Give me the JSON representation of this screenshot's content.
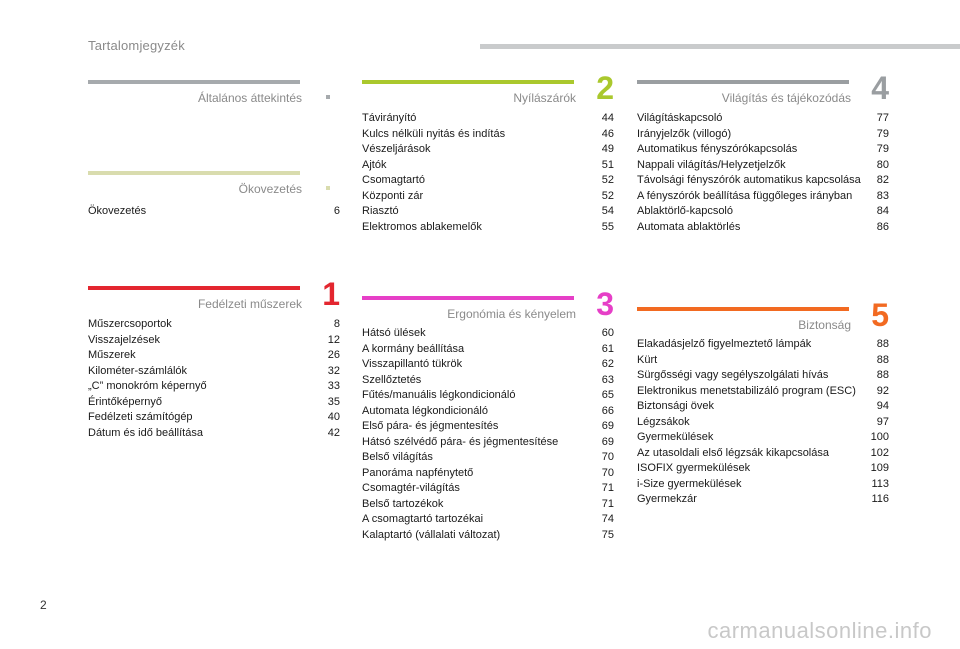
{
  "header": {
    "title": "Tartalomjegyzék"
  },
  "page_number": "2",
  "watermark": "carmanualsonline.info",
  "sections": {
    "general": {
      "title": "Általános áttekintés",
      "number": "",
      "color": "#a6aaad",
      "entries": []
    },
    "eco": {
      "title": "Ökovezetés",
      "number": "",
      "color": "#d9dcae",
      "entries": [
        {
          "label": "Ökovezetés",
          "page": "6"
        }
      ]
    },
    "s1": {
      "title": "Fedélzeti műszerek",
      "number": "1",
      "color": "#e3262f",
      "entries": [
        {
          "label": "Műszercsoportok",
          "page": "8"
        },
        {
          "label": "Visszajelzések",
          "page": "12"
        },
        {
          "label": "Műszerek",
          "page": "26"
        },
        {
          "label": "Kilométer-számlálók",
          "page": "32"
        },
        {
          "label": "„C” monokróm képernyő",
          "page": "33"
        },
        {
          "label": "Érintőképernyő",
          "page": "35"
        },
        {
          "label": "Fedélzeti számítógép",
          "page": "40"
        },
        {
          "label": "Dátum és idő beállítása",
          "page": "42"
        }
      ]
    },
    "s2": {
      "title": "Nyílászárók",
      "number": "2",
      "color": "#aac82d",
      "entries": [
        {
          "label": "Távirányító",
          "page": "44"
        },
        {
          "label": "Kulcs nélküli nyitás és indítás",
          "page": "46"
        },
        {
          "label": "Vészeljárások",
          "page": "49"
        },
        {
          "label": "Ajtók",
          "page": "51"
        },
        {
          "label": "Csomagtartó",
          "page": "52"
        },
        {
          "label": "Központi zár",
          "page": "52"
        },
        {
          "label": "Riasztó",
          "page": "54"
        },
        {
          "label": "Elektromos ablakemelők",
          "page": "55"
        }
      ]
    },
    "s3": {
      "title": "Ergonómia és kényelem",
      "number": "3",
      "color": "#e63fc7",
      "entries": [
        {
          "label": "Hátsó ülések",
          "page": "60"
        },
        {
          "label": "A kormány beállítása",
          "page": "61"
        },
        {
          "label": "Visszapillantó tükrök",
          "page": "62"
        },
        {
          "label": "Szellőztetés",
          "page": "63"
        },
        {
          "label": "Fűtés/manuális légkondicionáló",
          "page": "65"
        },
        {
          "label": "Automata légkondicionáló",
          "page": "66"
        },
        {
          "label": "Első pára- és jégmentesítés",
          "page": "69"
        },
        {
          "label": "Hátsó szélvédő pára- és jégmentesítése",
          "page": "69"
        },
        {
          "label": "Belső világítás",
          "page": "70"
        },
        {
          "label": "Panoráma napfénytető",
          "page": "70"
        },
        {
          "label": "Csomagtér-világítás",
          "page": "71"
        },
        {
          "label": "Belső tartozékok",
          "page": "71"
        },
        {
          "label": "A csomagtartó tartozékai",
          "page": "74"
        },
        {
          "label": "Kalaptartó (vállalati változat)",
          "page": "75"
        }
      ]
    },
    "s4": {
      "title": "Világítás és tájékozódás",
      "number": "4",
      "color": "#9a9ea1",
      "entries": [
        {
          "label": "Világításkapcsoló",
          "page": "77"
        },
        {
          "label": "Irányjelzők (villogó)",
          "page": "79"
        },
        {
          "label": "Automatikus fényszórókapcsolás",
          "page": "79"
        },
        {
          "label": "Nappali világítás/Helyzetjelzők",
          "page": "80"
        },
        {
          "label": "Távolsági fényszórók automatikus kapcsolása",
          "page": "82"
        },
        {
          "label": "A fényszórók beállítása függőleges irányban",
          "page": "83"
        },
        {
          "label": "Ablaktörlő-kapcsoló",
          "page": "84"
        },
        {
          "label": "Automata ablaktörlés",
          "page": "86"
        }
      ]
    },
    "s5": {
      "title": "Biztonság",
      "number": "5",
      "color": "#f26a21",
      "entries": [
        {
          "label": "Elakadásjelző figyelmeztető lámpák",
          "page": "88"
        },
        {
          "label": "Kürt",
          "page": "88"
        },
        {
          "label": "Sürgősségi vagy segélyszolgálati hívás",
          "page": "88"
        },
        {
          "label": "Elektronikus menetstabilizáló program (ESC)",
          "page": "92"
        },
        {
          "label": "Biztonsági övek",
          "page": "94"
        },
        {
          "label": "Légzsákok",
          "page": "97"
        },
        {
          "label": "Gyermekülések",
          "page": "100"
        },
        {
          "label": "Az utasoldali első légzsák kikapcsolása",
          "page": "102"
        },
        {
          "label": "ISOFIX gyermekülések",
          "page": "109"
        },
        {
          "label": "i-Size gyermekülések",
          "page": "113"
        },
        {
          "label": "Gyermekzár",
          "page": "116"
        }
      ]
    }
  }
}
